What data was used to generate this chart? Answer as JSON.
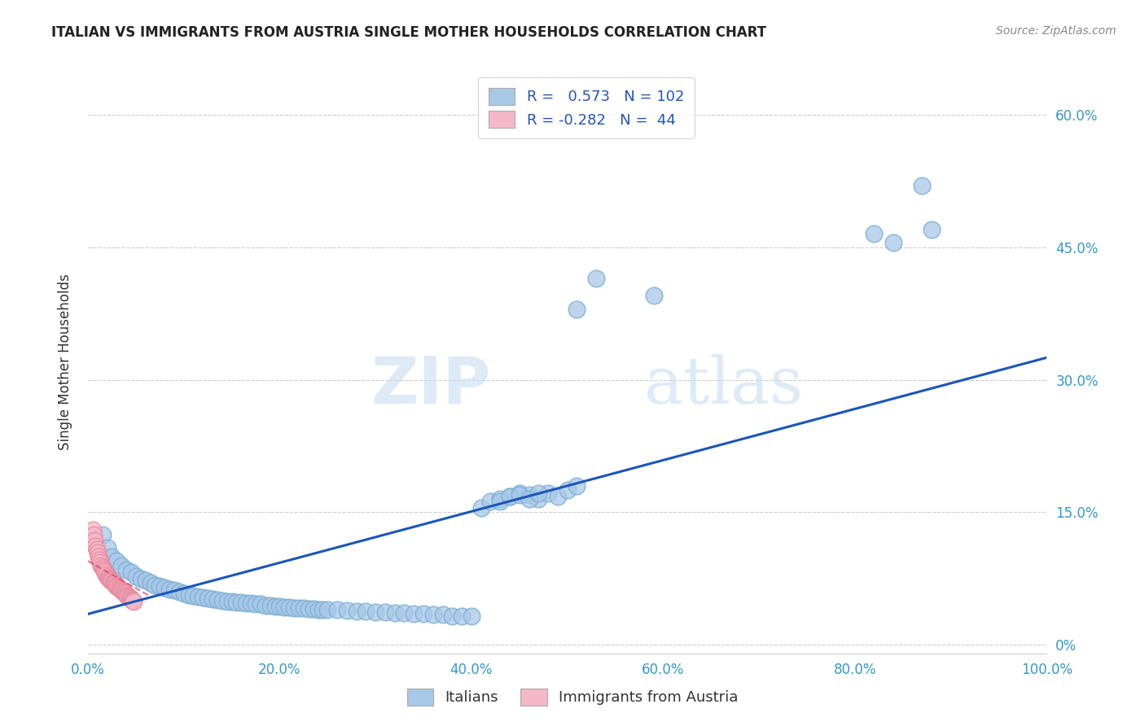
{
  "title": "ITALIAN VS IMMIGRANTS FROM AUSTRIA SINGLE MOTHER HOUSEHOLDS CORRELATION CHART",
  "source": "Source: ZipAtlas.com",
  "xlabel_ticks": [
    "0.0%",
    "20.0%",
    "40.0%",
    "60.0%",
    "80.0%",
    "100.0%"
  ],
  "ylabel_label": "Single Mother Households",
  "xlim": [
    0.0,
    1.0
  ],
  "ylim": [
    -0.01,
    0.65
  ],
  "blue_color": "#a8c8e8",
  "blue_edge_color": "#7aadd4",
  "blue_line_color": "#1a56bb",
  "pink_color": "#f5b8c8",
  "pink_edge_color": "#e88aa0",
  "pink_line_color": "#cc4466",
  "legend_blue_R": "0.573",
  "legend_blue_N": "102",
  "legend_pink_R": "-0.282",
  "legend_pink_N": "44",
  "watermark_zip": "ZIP",
  "watermark_atlas": "atlas",
  "blue_scatter_x": [
    0.015,
    0.02,
    0.025,
    0.03,
    0.035,
    0.04,
    0.045,
    0.05,
    0.055,
    0.06,
    0.065,
    0.07,
    0.075,
    0.08,
    0.085,
    0.09,
    0.095,
    0.1,
    0.105,
    0.11,
    0.115,
    0.12,
    0.125,
    0.13,
    0.135,
    0.14,
    0.145,
    0.15,
    0.155,
    0.16,
    0.165,
    0.17,
    0.175,
    0.18,
    0.185,
    0.19,
    0.195,
    0.2,
    0.205,
    0.21,
    0.215,
    0.22,
    0.225,
    0.23,
    0.235,
    0.24,
    0.245,
    0.25,
    0.26,
    0.27,
    0.28,
    0.29,
    0.3,
    0.31,
    0.32,
    0.33,
    0.34,
    0.35,
    0.36,
    0.37,
    0.38,
    0.39,
    0.4,
    0.41,
    0.42,
    0.43,
    0.44,
    0.45,
    0.46,
    0.47,
    0.48,
    0.49,
    0.5,
    0.51,
    0.43,
    0.44,
    0.45,
    0.46,
    0.47,
    0.51,
    0.53,
    0.59,
    0.82,
    0.84,
    0.87,
    0.88
  ],
  "blue_scatter_y": [
    0.125,
    0.11,
    0.1,
    0.095,
    0.09,
    0.085,
    0.082,
    0.078,
    0.075,
    0.073,
    0.07,
    0.068,
    0.067,
    0.065,
    0.063,
    0.062,
    0.06,
    0.058,
    0.057,
    0.056,
    0.055,
    0.054,
    0.053,
    0.052,
    0.051,
    0.05,
    0.049,
    0.049,
    0.048,
    0.048,
    0.047,
    0.047,
    0.046,
    0.046,
    0.045,
    0.045,
    0.044,
    0.044,
    0.043,
    0.043,
    0.042,
    0.042,
    0.042,
    0.041,
    0.041,
    0.04,
    0.04,
    0.04,
    0.04,
    0.039,
    0.038,
    0.038,
    0.037,
    0.037,
    0.036,
    0.036,
    0.035,
    0.035,
    0.034,
    0.034,
    0.033,
    0.033,
    0.033,
    0.155,
    0.162,
    0.165,
    0.168,
    0.172,
    0.17,
    0.165,
    0.172,
    0.168,
    0.175,
    0.18,
    0.162,
    0.168,
    0.17,
    0.165,
    0.172,
    0.38,
    0.415,
    0.395,
    0.465,
    0.455,
    0.52,
    0.47
  ],
  "pink_scatter_x": [
    0.005,
    0.006,
    0.007,
    0.008,
    0.009,
    0.01,
    0.011,
    0.012,
    0.013,
    0.014,
    0.015,
    0.016,
    0.017,
    0.018,
    0.019,
    0.02,
    0.021,
    0.022,
    0.023,
    0.024,
    0.025,
    0.026,
    0.027,
    0.028,
    0.029,
    0.03,
    0.031,
    0.032,
    0.033,
    0.034,
    0.035,
    0.036,
    0.037,
    0.038,
    0.039,
    0.04,
    0.041,
    0.042,
    0.043,
    0.044,
    0.045,
    0.046,
    0.047,
    0.048
  ],
  "pink_scatter_y": [
    0.13,
    0.125,
    0.118,
    0.112,
    0.108,
    0.104,
    0.1,
    0.096,
    0.093,
    0.09,
    0.088,
    0.086,
    0.084,
    0.082,
    0.08,
    0.078,
    0.076,
    0.075,
    0.074,
    0.073,
    0.072,
    0.071,
    0.07,
    0.069,
    0.068,
    0.067,
    0.066,
    0.065,
    0.064,
    0.063,
    0.062,
    0.061,
    0.06,
    0.059,
    0.058,
    0.057,
    0.056,
    0.055,
    0.054,
    0.053,
    0.052,
    0.051,
    0.05,
    0.049
  ],
  "blue_line_x": [
    0.0,
    1.0
  ],
  "blue_line_y": [
    0.035,
    0.325
  ],
  "pink_line_x": [
    0.0,
    0.065
  ],
  "pink_line_y": [
    0.095,
    0.055
  ]
}
